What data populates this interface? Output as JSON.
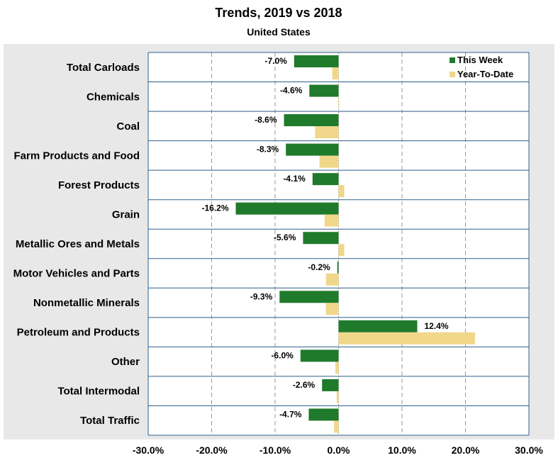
{
  "chart_data": {
    "type": "bar",
    "orientation": "horizontal",
    "title": "Trends, 2019 vs 2018",
    "subtitle": "United States",
    "xlabel": "",
    "ylabel": "",
    "xlim": [
      -30,
      30
    ],
    "x_ticks": [
      -30,
      -20,
      -10,
      0,
      10,
      20,
      30
    ],
    "x_tick_labels": [
      "-30.0%",
      "-20.0%",
      "-10.0%",
      "0.0%",
      "10.0%",
      "20.0%",
      "30.0%"
    ],
    "grid": "vertical dashed",
    "legend_position": "top-right",
    "categories": [
      "Total Carloads",
      "Chemicals",
      "Coal",
      "Farm Products and Food",
      "Forest Products",
      "Grain",
      "Metallic Ores and Metals",
      "Motor Vehicles and Parts",
      "Nonmetallic Minerals",
      "Petroleum and Products",
      "Other",
      "Total Intermodal",
      "Total Traffic"
    ],
    "series": [
      {
        "name": "This Week",
        "color": "#1f7a2b",
        "values": [
          -7.0,
          -4.6,
          -8.6,
          -8.3,
          -4.1,
          -16.2,
          -5.6,
          -0.2,
          -9.3,
          12.4,
          -6.0,
          -2.6,
          -4.7
        ],
        "labels": [
          "-7.0%",
          "-4.6%",
          "-8.6%",
          "-8.3%",
          "-4.1%",
          "-16.2%",
          "-5.6%",
          "-0.2%",
          "-9.3%",
          "12.4%",
          "-6.0%",
          "-2.6%",
          "-4.7%"
        ]
      },
      {
        "name": "Year-To-Date",
        "color": "#f0d789",
        "values": [
          -1.0,
          0.1,
          -3.7,
          -3.0,
          0.9,
          -2.2,
          0.9,
          -2.0,
          -2.0,
          21.5,
          -0.5,
          -0.3,
          -0.7
        ]
      }
    ],
    "colors": {
      "background": "#e8e8e8",
      "plot_background": "#ffffff",
      "row_separator": "#2e5f8a",
      "grid": "#9a9a9a"
    }
  }
}
